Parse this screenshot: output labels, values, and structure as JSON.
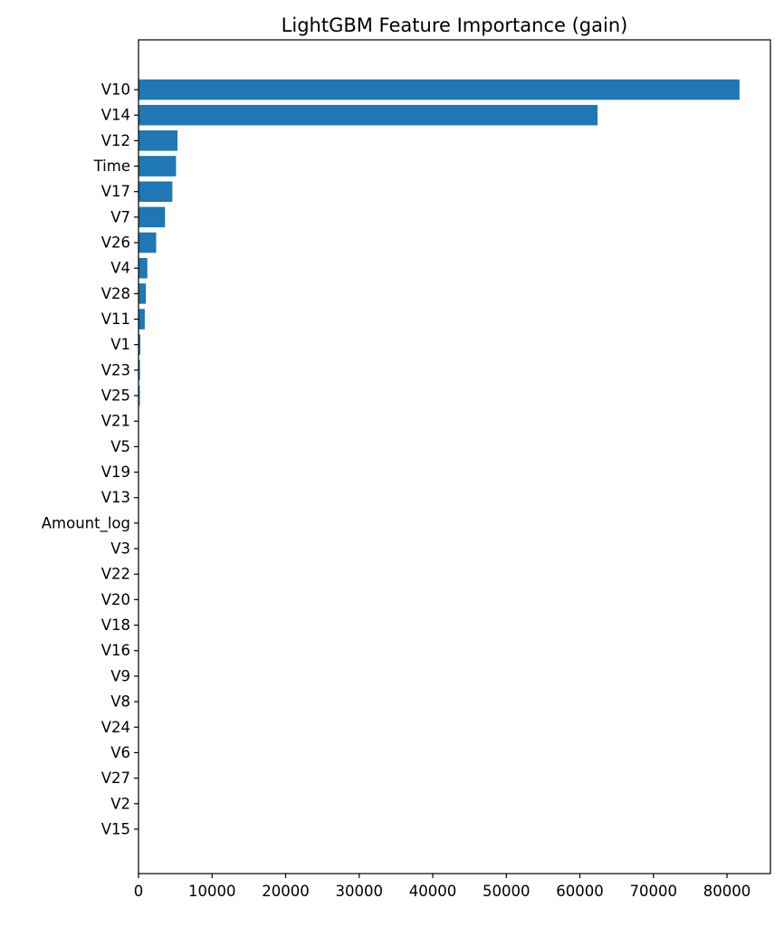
{
  "chart_data": {
    "type": "bar",
    "orientation": "horizontal",
    "title": "LightGBM Feature Importance (gain)",
    "xlabel": "",
    "ylabel": "",
    "bar_color": "#1f77b4",
    "xlim": [
      0,
      85900
    ],
    "x_ticks": [
      0,
      10000,
      20000,
      30000,
      40000,
      50000,
      60000,
      70000,
      80000
    ],
    "x_tick_labels": [
      "0",
      "10000",
      "20000",
      "30000",
      "40000",
      "50000",
      "60000",
      "70000",
      "80000"
    ],
    "categories": [
      "V10",
      "V14",
      "V12",
      "Time",
      "V17",
      "V7",
      "V26",
      "V4",
      "V28",
      "V11",
      "V1",
      "V23",
      "V25",
      "V21",
      "V5",
      "V19",
      "V13",
      "Amount_log",
      "V3",
      "V22",
      "V20",
      "V18",
      "V16",
      "V9",
      "V8",
      "V24",
      "V6",
      "V27",
      "V2",
      "V15"
    ],
    "values": [
      81700,
      62400,
      5300,
      5100,
      4600,
      3600,
      2400,
      1200,
      1000,
      850,
      250,
      200,
      180,
      40,
      30,
      25,
      20,
      15,
      12,
      10,
      8,
      7,
      6,
      5,
      4,
      3,
      2,
      1,
      1,
      0
    ],
    "grid": false,
    "legend": "none"
  }
}
